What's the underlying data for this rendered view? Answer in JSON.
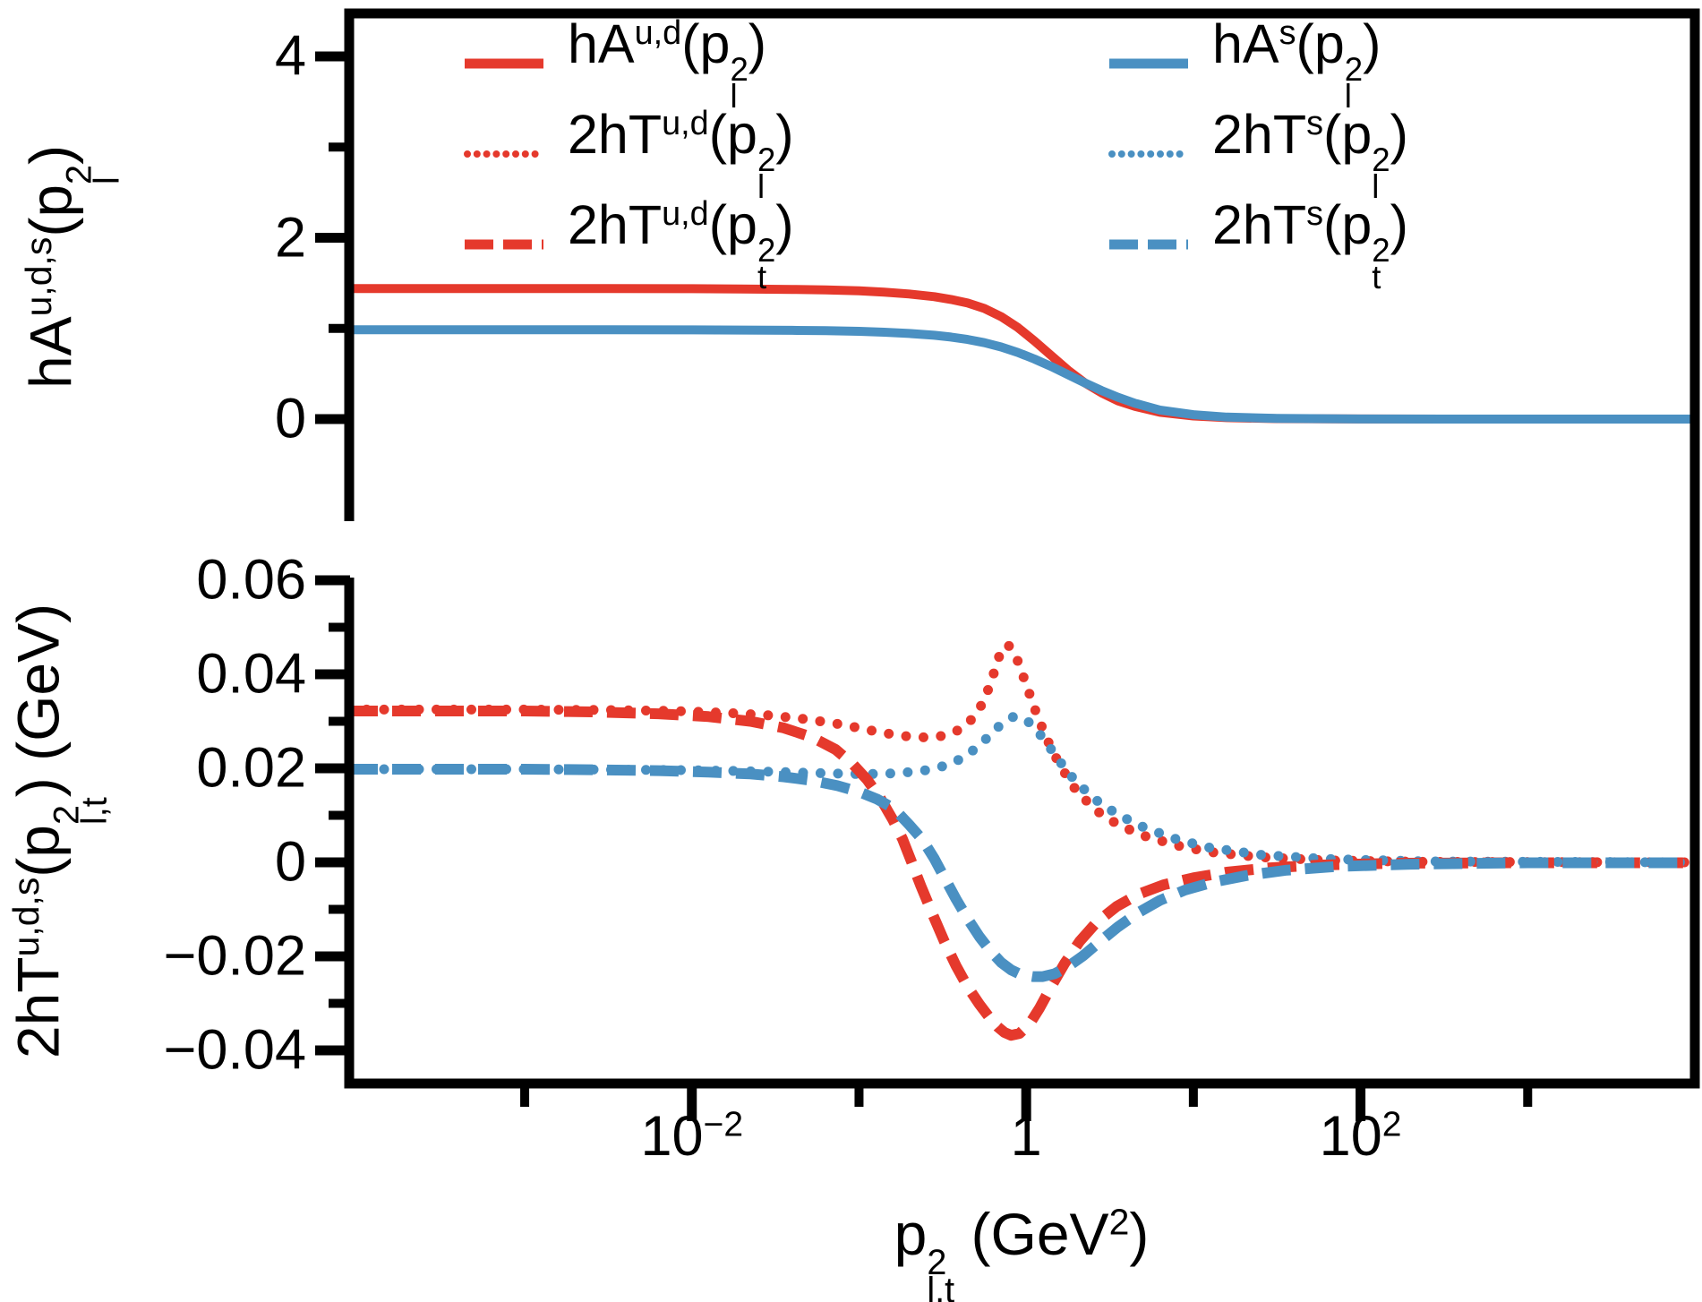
{
  "figure": {
    "background": "#ffffff",
    "colors": {
      "red": "#e5392c",
      "blue": "#4a90c2",
      "axis": "#000000"
    },
    "x_axis": {
      "label": "p^{2}_{l,t} (GeV^{2})",
      "scale": "log",
      "range_log10": [
        -4.05,
        4.0
      ],
      "major_ticks": [
        {
          "log10": -2,
          "label": "10^{−2}"
        },
        {
          "log10": 0,
          "label": "1"
        },
        {
          "log10": 2,
          "label": "10^{2}"
        }
      ],
      "minor_ticks_log10": [
        -3,
        -1,
        1,
        3
      ]
    }
  },
  "legend": {
    "columns": [
      {
        "items": [
          {
            "label": "hA^{u,d}(p^{2}_{l})",
            "color": "red",
            "style": "solid"
          },
          {
            "label": "2hT^{u,d}(p^{2}_{l})",
            "color": "red",
            "style": "dotted"
          },
          {
            "label": "2hT^{u,d}(p^{2}_{t})",
            "color": "red",
            "style": "dashed"
          }
        ]
      },
      {
        "items": [
          {
            "label": "hA^{s}(p^{2}_{l})",
            "color": "blue",
            "style": "solid"
          },
          {
            "label": "2hT^{s}(p^{2}_{l})",
            "color": "blue",
            "style": "dotted"
          },
          {
            "label": "2hT^{s}(p^{2}_{t})",
            "color": "blue",
            "style": "dashed"
          }
        ]
      }
    ]
  },
  "chart_data": [
    {
      "type": "line",
      "panel": "top",
      "ylabel": "hA^{u,d,s}(p^{2}_{l})",
      "xscale": "log",
      "xlim_log10": [
        -4.05,
        4.0
      ],
      "ylim": [
        -1.12,
        4.47
      ],
      "grid": false,
      "yticks_major": [
        {
          "value": 0,
          "label": "0"
        },
        {
          "value": 2,
          "label": "2"
        },
        {
          "value": 4,
          "label": "4"
        }
      ],
      "yticks_minor": [
        1,
        3
      ],
      "series": [
        {
          "name": "hA^{u,d}(p_l^2)",
          "color": "red",
          "style": "solid",
          "points": [
            [
              -4.05,
              1.44
            ],
            [
              -3.5,
              1.44
            ],
            [
              -3,
              1.44
            ],
            [
              -2.5,
              1.44
            ],
            [
              -2,
              1.438
            ],
            [
              -1.7,
              1.435
            ],
            [
              -1.4,
              1.43
            ],
            [
              -1.2,
              1.425
            ],
            [
              -1.0,
              1.415
            ],
            [
              -0.85,
              1.4
            ],
            [
              -0.7,
              1.38
            ],
            [
              -0.55,
              1.35
            ],
            [
              -0.45,
              1.32
            ],
            [
              -0.35,
              1.28
            ],
            [
              -0.25,
              1.22
            ],
            [
              -0.15,
              1.13
            ],
            [
              -0.05,
              1.01
            ],
            [
              0.05,
              0.86
            ],
            [
              0.15,
              0.7
            ],
            [
              0.25,
              0.54
            ],
            [
              0.35,
              0.4
            ],
            [
              0.45,
              0.29
            ],
            [
              0.55,
              0.2
            ],
            [
              0.65,
              0.14
            ],
            [
              0.8,
              0.075
            ],
            [
              1.0,
              0.035
            ],
            [
              1.2,
              0.016
            ],
            [
              1.5,
              0.005
            ],
            [
              2.0,
              0.001
            ],
            [
              2.5,
              0
            ],
            [
              4.0,
              0
            ]
          ]
        },
        {
          "name": "hA^{s}(p_l^2)",
          "color": "blue",
          "style": "solid",
          "points": [
            [
              -4.05,
              0.985
            ],
            [
              -3.5,
              0.985
            ],
            [
              -3,
              0.985
            ],
            [
              -2.5,
              0.985
            ],
            [
              -2,
              0.984
            ],
            [
              -1.7,
              0.982
            ],
            [
              -1.4,
              0.979
            ],
            [
              -1.2,
              0.975
            ],
            [
              -1.0,
              0.968
            ],
            [
              -0.85,
              0.958
            ],
            [
              -0.7,
              0.944
            ],
            [
              -0.55,
              0.924
            ],
            [
              -0.45,
              0.905
            ],
            [
              -0.35,
              0.878
            ],
            [
              -0.25,
              0.842
            ],
            [
              -0.15,
              0.795
            ],
            [
              -0.05,
              0.735
            ],
            [
              0.05,
              0.662
            ],
            [
              0.15,
              0.58
            ],
            [
              0.25,
              0.49
            ],
            [
              0.35,
              0.4
            ],
            [
              0.45,
              0.315
            ],
            [
              0.55,
              0.24
            ],
            [
              0.65,
              0.175
            ],
            [
              0.8,
              0.1
            ],
            [
              1.0,
              0.048
            ],
            [
              1.2,
              0.022
            ],
            [
              1.5,
              0.007
            ],
            [
              2.0,
              0.001
            ],
            [
              2.5,
              0
            ],
            [
              4.0,
              0
            ]
          ]
        }
      ]
    },
    {
      "type": "line",
      "panel": "bottom",
      "ylabel": "2hT^{u,d,s}(p^{2}_{l,t}) (GeV)",
      "xscale": "log",
      "xlim_log10": [
        -4.05,
        4.0
      ],
      "ylim": [
        -0.047,
        0.0605
      ],
      "grid": false,
      "yticks_major": [
        {
          "value": 0.06,
          "label": "0.06"
        },
        {
          "value": 0.04,
          "label": "0.04"
        },
        {
          "value": 0.02,
          "label": "0.02"
        },
        {
          "value": 0,
          "label": "0"
        },
        {
          "value": -0.02,
          "label": "−0.02"
        },
        {
          "value": -0.04,
          "label": "−0.04"
        }
      ],
      "yticks_minor": [
        0.05,
        0.03,
        0.01,
        -0.01,
        -0.03
      ],
      "series": [
        {
          "name": "2hT^{u,d}(p_l^2)",
          "color": "red",
          "style": "dotted",
          "points": [
            [
              -4.05,
              0.0325
            ],
            [
              -3,
              0.0325
            ],
            [
              -2.5,
              0.0324
            ],
            [
              -2.1,
              0.0322
            ],
            [
              -1.8,
              0.0318
            ],
            [
              -1.55,
              0.0313
            ],
            [
              -1.35,
              0.0306
            ],
            [
              -1.15,
              0.0296
            ],
            [
              -1.0,
              0.0286
            ],
            [
              -0.88,
              0.0277
            ],
            [
              -0.76,
              0.027
            ],
            [
              -0.65,
              0.0266
            ],
            [
              -0.55,
              0.0266
            ],
            [
              -0.46,
              0.0272
            ],
            [
              -0.38,
              0.0286
            ],
            [
              -0.31,
              0.031
            ],
            [
              -0.25,
              0.0345
            ],
            [
              -0.2,
              0.0395
            ],
            [
              -0.16,
              0.044
            ],
            [
              -0.13,
              0.0462
            ],
            [
              -0.1,
              0.046
            ],
            [
              -0.05,
              0.0428
            ],
            [
              0.0,
              0.0378
            ],
            [
              0.06,
              0.0318
            ],
            [
              0.12,
              0.0265
            ],
            [
              0.2,
              0.0207
            ],
            [
              0.3,
              0.0152
            ],
            [
              0.42,
              0.011
            ],
            [
              0.55,
              0.008
            ],
            [
              0.7,
              0.0057
            ],
            [
              0.9,
              0.0036
            ],
            [
              1.1,
              0.0022
            ],
            [
              1.4,
              0.0011
            ],
            [
              1.8,
              0.0004
            ],
            [
              2.4,
              0.0001
            ],
            [
              4.0,
              0
            ]
          ]
        },
        {
          "name": "2hT^{s}(p_l^2)",
          "color": "blue",
          "style": "dotted",
          "points": [
            [
              -4.05,
              0.0198
            ],
            [
              -3,
              0.0198
            ],
            [
              -2.4,
              0.0197
            ],
            [
              -2.0,
              0.0196
            ],
            [
              -1.7,
              0.0194
            ],
            [
              -1.45,
              0.0192
            ],
            [
              -1.25,
              0.019
            ],
            [
              -1.05,
              0.0188
            ],
            [
              -0.9,
              0.0188
            ],
            [
              -0.75,
              0.019
            ],
            [
              -0.6,
              0.0196
            ],
            [
              -0.48,
              0.0206
            ],
            [
              -0.38,
              0.0222
            ],
            [
              -0.3,
              0.0243
            ],
            [
              -0.23,
              0.0266
            ],
            [
              -0.17,
              0.0287
            ],
            [
              -0.12,
              0.0301
            ],
            [
              -0.08,
              0.0309
            ],
            [
              -0.04,
              0.031
            ],
            [
              0.01,
              0.03
            ],
            [
              0.07,
              0.0278
            ],
            [
              0.13,
              0.025
            ],
            [
              0.2,
              0.0215
            ],
            [
              0.3,
              0.017
            ],
            [
              0.42,
              0.0132
            ],
            [
              0.55,
              0.0101
            ],
            [
              0.7,
              0.0075
            ],
            [
              0.9,
              0.0049
            ],
            [
              1.1,
              0.0031
            ],
            [
              1.4,
              0.0016
            ],
            [
              1.8,
              0.0007
            ],
            [
              2.4,
              0.0002
            ],
            [
              4.0,
              0
            ]
          ]
        },
        {
          "name": "2hT^{u,d}(p_t^2)",
          "color": "red",
          "style": "dashed",
          "points": [
            [
              -4.05,
              0.0322
            ],
            [
              -3,
              0.0322
            ],
            [
              -2.6,
              0.032
            ],
            [
              -2.2,
              0.0316
            ],
            [
              -1.9,
              0.031
            ],
            [
              -1.65,
              0.03
            ],
            [
              -1.45,
              0.0286
            ],
            [
              -1.28,
              0.0266
            ],
            [
              -1.14,
              0.024
            ],
            [
              -1.04,
              0.021
            ],
            [
              -0.95,
              0.0175
            ],
            [
              -0.87,
              0.0135
            ],
            [
              -0.8,
              0.0092
            ],
            [
              -0.74,
              0.005
            ],
            [
              -0.69,
              0.0005
            ],
            [
              -0.63,
              -0.005
            ],
            [
              -0.56,
              -0.011
            ],
            [
              -0.49,
              -0.0168
            ],
            [
              -0.42,
              -0.022
            ],
            [
              -0.35,
              -0.0265
            ],
            [
              -0.28,
              -0.0302
            ],
            [
              -0.22,
              -0.033
            ],
            [
              -0.17,
              -0.035
            ],
            [
              -0.13,
              -0.0362
            ],
            [
              -0.09,
              -0.0368
            ],
            [
              -0.04,
              -0.0364
            ],
            [
              0.02,
              -0.0344
            ],
            [
              0.08,
              -0.031
            ],
            [
              0.15,
              -0.0264
            ],
            [
              0.23,
              -0.0215
            ],
            [
              0.32,
              -0.0168
            ],
            [
              0.42,
              -0.0128
            ],
            [
              0.54,
              -0.0094
            ],
            [
              0.67,
              -0.0068
            ],
            [
              0.82,
              -0.0048
            ],
            [
              1.0,
              -0.0033
            ],
            [
              1.2,
              -0.0021
            ],
            [
              1.45,
              -0.0012
            ],
            [
              1.75,
              -0.0006
            ],
            [
              2.2,
              -0.0002
            ],
            [
              3.0,
              -0.0001
            ],
            [
              4.0,
              -0.0001
            ]
          ]
        },
        {
          "name": "2hT^{s}(p_t^2)",
          "color": "blue",
          "style": "dashed",
          "points": [
            [
              -4.05,
              0.0198
            ],
            [
              -3,
              0.0198
            ],
            [
              -2.6,
              0.0197
            ],
            [
              -2.2,
              0.0195
            ],
            [
              -1.9,
              0.0192
            ],
            [
              -1.65,
              0.0188
            ],
            [
              -1.45,
              0.0182
            ],
            [
              -1.28,
              0.0174
            ],
            [
              -1.13,
              0.0163
            ],
            [
              -1.0,
              0.015
            ],
            [
              -0.89,
              0.0134
            ],
            [
              -0.79,
              0.0114
            ],
            [
              -0.7,
              0.008
            ],
            [
              -0.62,
              0.0048
            ],
            [
              -0.55,
              0.0008
            ],
            [
              -0.49,
              -0.0032
            ],
            [
              -0.42,
              -0.0078
            ],
            [
              -0.35,
              -0.012
            ],
            [
              -0.28,
              -0.0158
            ],
            [
              -0.21,
              -0.019
            ],
            [
              -0.15,
              -0.0213
            ],
            [
              -0.09,
              -0.0229
            ],
            [
              -0.03,
              -0.0239
            ],
            [
              0.04,
              -0.0243
            ],
            [
              0.1,
              -0.0243
            ],
            [
              0.17,
              -0.0237
            ],
            [
              0.25,
              -0.0222
            ],
            [
              0.34,
              -0.0199
            ],
            [
              0.44,
              -0.0169
            ],
            [
              0.55,
              -0.0137
            ],
            [
              0.67,
              -0.0107
            ],
            [
              0.8,
              -0.0081
            ],
            [
              0.95,
              -0.0059
            ],
            [
              1.12,
              -0.0042
            ],
            [
              1.32,
              -0.0028
            ],
            [
              1.55,
              -0.0017
            ],
            [
              1.85,
              -0.0009
            ],
            [
              2.3,
              -0.0004
            ],
            [
              3.0,
              -0.0001
            ],
            [
              4.0,
              -0.0001
            ]
          ]
        }
      ]
    }
  ]
}
